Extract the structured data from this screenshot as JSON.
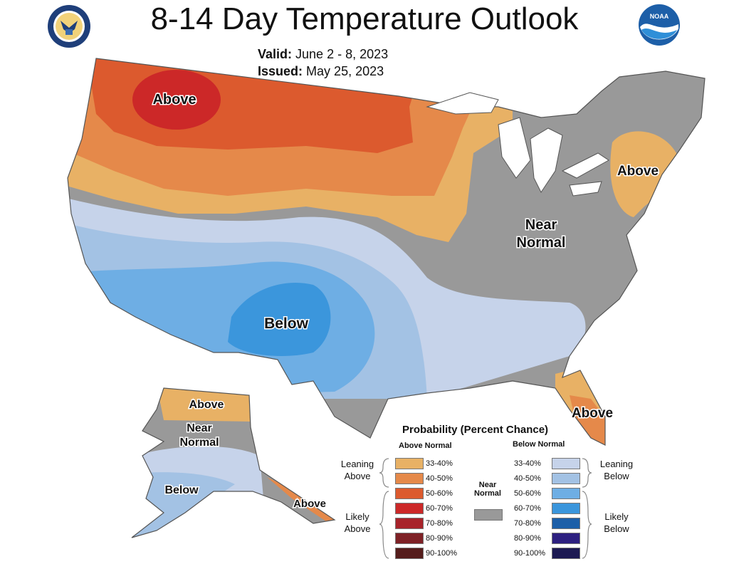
{
  "title": "8-14 Day Temperature Outlook",
  "valid_label": "Valid:",
  "valid_dates": "June 2 - 8, 2023",
  "issued_label": "Issued:",
  "issued_date": "May 25, 2023",
  "logos": {
    "left": "department-of-commerce-seal",
    "right": "noaa-logo"
  },
  "map_labels": {
    "north_west": "Above",
    "north_east": "Above",
    "center_east_line1": "Near",
    "center_east_line2": "Normal",
    "south_west": "Below",
    "florida": "Above",
    "alaska_north": "Above",
    "alaska_mid_line1": "Near",
    "alaska_mid_line2": "Normal",
    "alaska_south": "Below",
    "alaska_panhandle": "Above"
  },
  "legend": {
    "title": "Probability (Percent Chance)",
    "above_header": "Above Normal",
    "below_header": "Below Normal",
    "near_line1": "Near",
    "near_line2": "Normal",
    "leaning_above_line1": "Leaning",
    "leaning_above_line2": "Above",
    "likely_above_line1": "Likely",
    "likely_above_line2": "Above",
    "leaning_below_line1": "Leaning",
    "leaning_below_line2": "Below",
    "likely_below_line1": "Likely",
    "likely_below_line2": "Below",
    "above": [
      {
        "range": "33-40%",
        "color": "#e8b165"
      },
      {
        "range": "40-50%",
        "color": "#e5894a"
      },
      {
        "range": "50-60%",
        "color": "#dc5a2e"
      },
      {
        "range": "60-70%",
        "color": "#cc2828"
      },
      {
        "range": "70-80%",
        "color": "#a8232a"
      },
      {
        "range": "80-90%",
        "color": "#7e2126"
      },
      {
        "range": "90-100%",
        "color": "#551d1c"
      }
    ],
    "below": [
      {
        "range": "33-40%",
        "color": "#c6d3ea"
      },
      {
        "range": "40-50%",
        "color": "#a3c2e4"
      },
      {
        "range": "50-60%",
        "color": "#6eaee4"
      },
      {
        "range": "60-70%",
        "color": "#3b96dc"
      },
      {
        "range": "70-80%",
        "color": "#1c5fa8"
      },
      {
        "range": "80-90%",
        "color": "#2d2080"
      },
      {
        "range": "90-100%",
        "color": "#1d1a52"
      }
    ],
    "near_color": "#999999"
  }
}
